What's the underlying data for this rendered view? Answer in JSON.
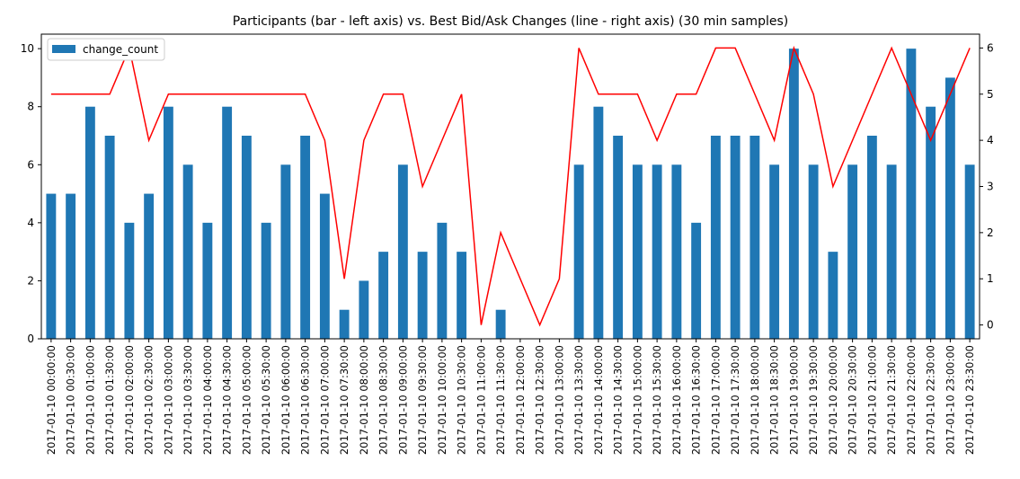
{
  "chart_data": {
    "type": "bar",
    "title": "Participants (bar - left axis) vs. Best Bid/Ask Changes (line - right axis) (30 min samples)",
    "xlabel": "",
    "ylabel": "",
    "categories": [
      "2017-01-10 00:00:00",
      "2017-01-10 00:30:00",
      "2017-01-10 01:00:00",
      "2017-01-10 01:30:00",
      "2017-01-10 02:00:00",
      "2017-01-10 02:30:00",
      "2017-01-10 03:00:00",
      "2017-01-10 03:30:00",
      "2017-01-10 04:00:00",
      "2017-01-10 04:30:00",
      "2017-01-10 05:00:00",
      "2017-01-10 05:30:00",
      "2017-01-10 06:00:00",
      "2017-01-10 06:30:00",
      "2017-01-10 07:00:00",
      "2017-01-10 07:30:00",
      "2017-01-10 08:00:00",
      "2017-01-10 08:30:00",
      "2017-01-10 09:00:00",
      "2017-01-10 09:30:00",
      "2017-01-10 10:00:00",
      "2017-01-10 10:30:00",
      "2017-01-10 11:00:00",
      "2017-01-10 11:30:00",
      "2017-01-10 12:00:00",
      "2017-01-10 12:30:00",
      "2017-01-10 13:00:00",
      "2017-01-10 13:30:00",
      "2017-01-10 14:00:00",
      "2017-01-10 14:30:00",
      "2017-01-10 15:00:00",
      "2017-01-10 15:30:00",
      "2017-01-10 16:00:00",
      "2017-01-10 16:30:00",
      "2017-01-10 17:00:00",
      "2017-01-10 17:30:00",
      "2017-01-10 18:00:00",
      "2017-01-10 18:30:00",
      "2017-01-10 19:00:00",
      "2017-01-10 19:30:00",
      "2017-01-10 20:00:00",
      "2017-01-10 20:30:00",
      "2017-01-10 21:00:00",
      "2017-01-10 21:30:00",
      "2017-01-10 22:00:00",
      "2017-01-10 22:30:00",
      "2017-01-10 23:00:00",
      "2017-01-10 23:30:00"
    ],
    "series": [
      {
        "name": "change_count",
        "type": "bar",
        "axis": "left",
        "color": "#1f77b4",
        "values": [
          5,
          5,
          8,
          7,
          4,
          5,
          8,
          6,
          4,
          8,
          7,
          4,
          6,
          7,
          5,
          1,
          2,
          3,
          6,
          3,
          4,
          3,
          0,
          1,
          0,
          0,
          0,
          6,
          8,
          7,
          6,
          6,
          6,
          4,
          7,
          7,
          7,
          6,
          10,
          6,
          3,
          6,
          7,
          6,
          10,
          8,
          9,
          6
        ]
      },
      {
        "type": "line",
        "axis": "right",
        "color": "#ff0000",
        "values": [
          5,
          5,
          5,
          5,
          6,
          4,
          5,
          5,
          5,
          5,
          5,
          5,
          5,
          5,
          4,
          1,
          4,
          5,
          5,
          3,
          4,
          5,
          0,
          2,
          1,
          0,
          1,
          6,
          5,
          5,
          5,
          4,
          5,
          5,
          6,
          6,
          5,
          4,
          6,
          5,
          3,
          4,
          5,
          6,
          5,
          4,
          5,
          6
        ]
      }
    ],
    "ylim": [
      0,
      10.5
    ],
    "y2lim": [
      -0.3,
      6.3
    ],
    "yticks": [
      0,
      2,
      4,
      6,
      8,
      10
    ],
    "y2ticks": [
      0,
      1,
      2,
      3,
      4,
      5,
      6
    ],
    "legend": {
      "position": "top-left",
      "entries": [
        "change_count"
      ]
    },
    "grid": false
  }
}
